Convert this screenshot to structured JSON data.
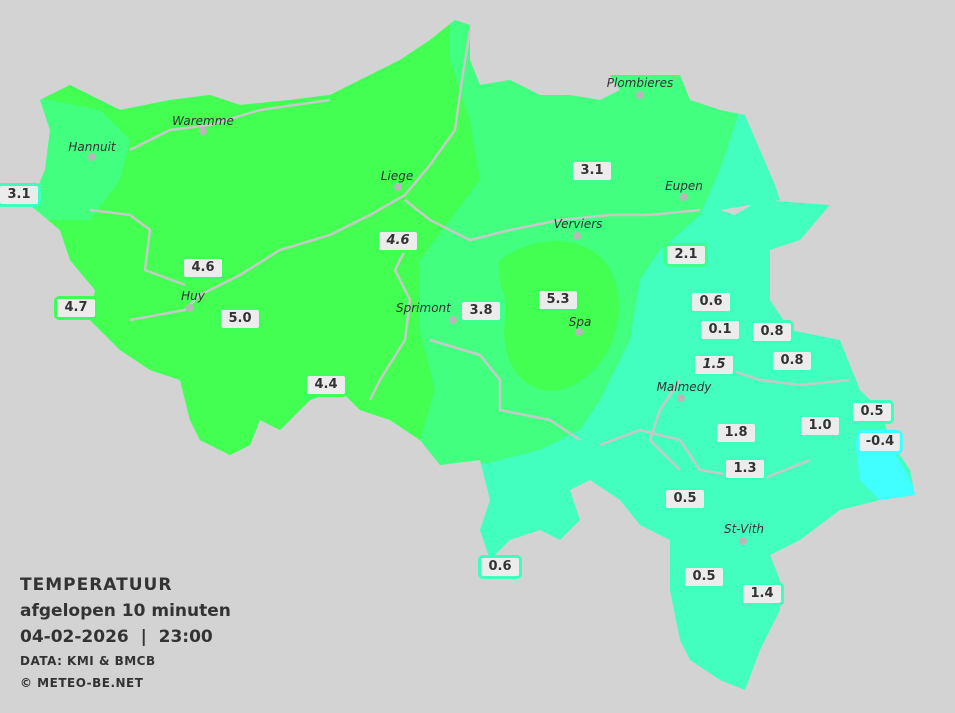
{
  "legend": {
    "title": "TEMPERATUUR",
    "subtitle": "afgelopen 10 minuten",
    "datetime": "04-02-2026  |  23:00",
    "source": "DATA: KMI & BMCB",
    "copyright": "© METEO-BE.NET"
  },
  "colors": {
    "background": "#d3d3d3",
    "zone_5": "#3dff4f",
    "zone_3_4": "#3dff80",
    "zone_1_2": "#3dffbf",
    "zone_below_0": "#3dffff"
  },
  "towns": [
    "Plombieres",
    "Waremme",
    "Hannuit",
    "Liege",
    "Eupen",
    "Verviers",
    "Huy",
    "Sprimont",
    "Spa",
    "Malmedy",
    "St-Vith"
  ],
  "stations": [
    {
      "value": "3.1"
    },
    {
      "value": "3.1"
    },
    {
      "value": "4.6"
    },
    {
      "value": "4.6"
    },
    {
      "value": "2.1"
    },
    {
      "value": "4.7"
    },
    {
      "value": "5.0"
    },
    {
      "value": "3.8"
    },
    {
      "value": "5.3"
    },
    {
      "value": "0.6"
    },
    {
      "value": "0.1"
    },
    {
      "value": "0.8"
    },
    {
      "value": "0.8"
    },
    {
      "value": "1.5"
    },
    {
      "value": "4.4"
    },
    {
      "value": "1.0"
    },
    {
      "value": "0.5"
    },
    {
      "value": "-0.4"
    },
    {
      "value": "1.8"
    },
    {
      "value": "1.3"
    },
    {
      "value": "0.5"
    },
    {
      "value": "0.6"
    },
    {
      "value": "0.5"
    },
    {
      "value": "1.4"
    }
  ]
}
